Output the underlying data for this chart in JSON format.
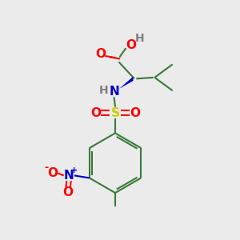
{
  "background_color": "#ebebeb",
  "figsize": [
    3.0,
    3.0
  ],
  "dpi": 100,
  "colors": {
    "C": "#3a7a3a",
    "O": "#ff0000",
    "N": "#0000cc",
    "S": "#cccc00",
    "H": "#808080",
    "bond": "#3a7a3a"
  },
  "bond_lw": 1.5
}
